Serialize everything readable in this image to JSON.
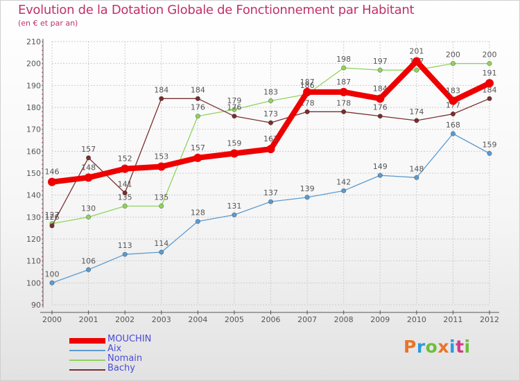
{
  "title": "Evolution de la Dotation Globale de Fonctionnement par Habitant",
  "subtitle": "(en € et par an)",
  "brand": {
    "text": "Proxiti",
    "colors": [
      "#e8742a",
      "#2a9adf",
      "#6dbf3a",
      "#e8742a",
      "#2a9adf",
      "#d23b8c",
      "#6dbf3a"
    ]
  },
  "chart_data": {
    "type": "line",
    "x": [
      "2000",
      "2001",
      "2002",
      "2003",
      "2004",
      "2005",
      "2006",
      "2007",
      "2008",
      "2009",
      "2010",
      "2011",
      "2012"
    ],
    "ylim": [
      90,
      210
    ],
    "yticks": [
      90,
      100,
      110,
      120,
      130,
      140,
      150,
      160,
      170,
      180,
      190,
      200,
      210
    ],
    "grid": true,
    "series": [
      {
        "name": "MOUCHIN",
        "color": "#ee0000",
        "values": [
          146,
          148,
          152,
          153,
          157,
          159,
          161,
          187,
          187,
          184,
          201,
          183,
          191
        ]
      },
      {
        "name": "Aix",
        "color": "#5b9bd1",
        "values": [
          100,
          106,
          113,
          114,
          128,
          131,
          137,
          139,
          142,
          149,
          148,
          168,
          159
        ]
      },
      {
        "name": "Nomain",
        "color": "#8fd45a",
        "values": [
          127,
          130,
          135,
          135,
          176,
          179,
          183,
          186,
          198,
          197,
          197,
          200,
          200
        ]
      },
      {
        "name": "Bachy",
        "color": "#7a2e2e",
        "values": [
          126,
          157,
          141,
          184,
          184,
          176,
          173,
          178,
          178,
          176,
          174,
          177,
          184
        ]
      }
    ]
  }
}
